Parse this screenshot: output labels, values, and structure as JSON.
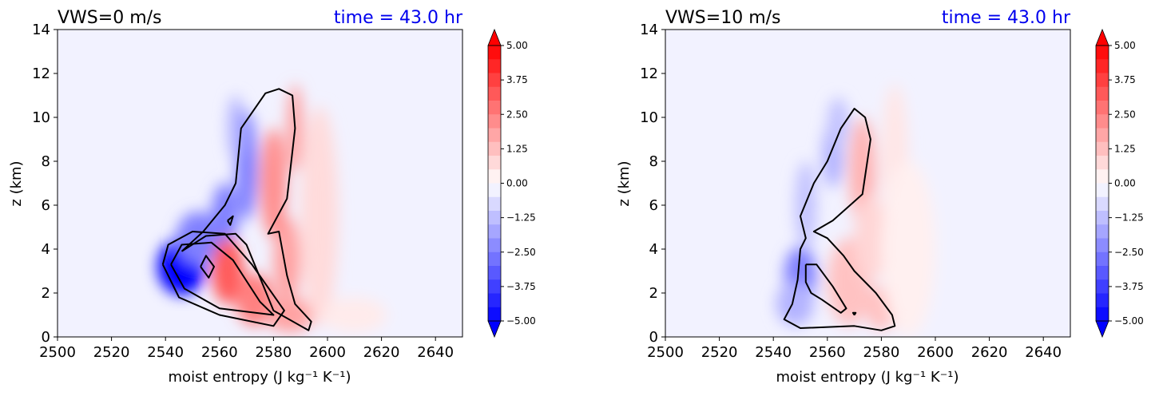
{
  "chart_data": [
    {
      "type": "contourf",
      "title": "VWS=0 m/s",
      "time_label": "time = 43.0 hr",
      "xlabel": "moist entropy (J kg⁻¹ K⁻¹)",
      "ylabel": "z (km)",
      "xlim": [
        2500,
        2650
      ],
      "ylim": [
        0,
        14
      ],
      "xticks": [
        "2500",
        "2520",
        "2540",
        "2560",
        "2580",
        "2600",
        "2620",
        "2640"
      ],
      "yticks": [
        "0",
        "2",
        "4",
        "6",
        "8",
        "10",
        "12",
        "14"
      ],
      "colorbar": {
        "min": -5.0,
        "max": 5.0,
        "extend": "both",
        "ticks": [
          "5.00",
          "3.75",
          "2.50",
          "1.25",
          "0.00",
          "−1.25",
          "−2.50",
          "−3.75",
          "−5.00"
        ]
      },
      "blobs": [
        {
          "x": 2546,
          "y": 3.2,
          "rx": 9,
          "ry": 1.3,
          "v": -5
        },
        {
          "x": 2545,
          "y": 3.3,
          "rx": 5,
          "ry": 0.8,
          "v": -5
        },
        {
          "x": 2552,
          "y": 4.5,
          "rx": 8,
          "ry": 1.2,
          "v": -2.5
        },
        {
          "x": 2562,
          "y": 5.5,
          "rx": 5,
          "ry": 1.5,
          "v": -2.5
        },
        {
          "x": 2570,
          "y": 7.8,
          "rx": 4,
          "ry": 2.5,
          "v": -2.5
        },
        {
          "x": 2566,
          "y": 9.5,
          "rx": 3,
          "ry": 1.5,
          "v": -1.5
        },
        {
          "x": 2563,
          "y": 3.0,
          "rx": 6,
          "ry": 1.5,
          "v": 3.2
        },
        {
          "x": 2573,
          "y": 1.7,
          "rx": 7,
          "ry": 1.2,
          "v": 2.5
        },
        {
          "x": 2586,
          "y": 1.0,
          "rx": 9,
          "ry": 0.8,
          "v": 1.8
        },
        {
          "x": 2585,
          "y": 3.5,
          "rx": 5,
          "ry": 2.0,
          "v": 1.8
        },
        {
          "x": 2580,
          "y": 7.0,
          "rx": 5,
          "ry": 2.5,
          "v": 2.2
        },
        {
          "x": 2588,
          "y": 9.5,
          "rx": 3,
          "ry": 2.0,
          "v": 1.8
        },
        {
          "x": 2597,
          "y": 5.5,
          "rx": 7,
          "ry": 5.0,
          "v": 0.7
        },
        {
          "x": 2610,
          "y": 1.0,
          "rx": 12,
          "ry": 0.8,
          "v": 0.4
        }
      ],
      "contours": [
        [
          [
            2539,
            3.3
          ],
          [
            2541,
            4.2
          ],
          [
            2550,
            4.8
          ],
          [
            2562,
            4.7
          ],
          [
            2572,
            3.3
          ],
          [
            2584,
            1.2
          ],
          [
            2580,
            0.5
          ],
          [
            2560,
            1.0
          ],
          [
            2545,
            1.8
          ],
          [
            2539,
            3.3
          ]
        ],
        [
          [
            2542,
            3.3
          ],
          [
            2546,
            4.2
          ],
          [
            2557,
            4.3
          ],
          [
            2565,
            3.5
          ],
          [
            2575,
            1.6
          ],
          [
            2580,
            1.0
          ],
          [
            2560,
            1.3
          ],
          [
            2547,
            2.2
          ],
          [
            2542,
            3.3
          ]
        ],
        [
          [
            2553,
            3.2
          ],
          [
            2555,
            3.7
          ],
          [
            2558,
            3.2
          ],
          [
            2556,
            2.7
          ],
          [
            2553,
            3.2
          ]
        ],
        [
          [
            2563,
            5.3
          ],
          [
            2565,
            5.5
          ],
          [
            2564,
            5.1
          ],
          [
            2563,
            5.3
          ]
        ],
        [
          [
            2546,
            3.9
          ],
          [
            2555,
            4.6
          ],
          [
            2566,
            4.7
          ],
          [
            2570,
            4.2
          ],
          [
            2580,
            1.2
          ],
          [
            2593,
            0.3
          ],
          [
            2594,
            0.7
          ],
          [
            2588,
            1.5
          ],
          [
            2585,
            2.8
          ],
          [
            2582,
            4.8
          ],
          [
            2578,
            4.7
          ],
          [
            2585,
            6.3
          ],
          [
            2588,
            9.5
          ],
          [
            2587,
            11.0
          ],
          [
            2582,
            11.3
          ],
          [
            2577,
            11.1
          ],
          [
            2568,
            9.5
          ],
          [
            2566,
            7.0
          ],
          [
            2562,
            6.0
          ],
          [
            2554,
            4.8
          ],
          [
            2546,
            3.9
          ]
        ]
      ]
    },
    {
      "type": "contourf",
      "title": "VWS=10 m/s",
      "time_label": "time = 43.0 hr",
      "xlabel": "moist entropy (J kg⁻¹ K⁻¹)",
      "ylabel": "z (km)",
      "xlim": [
        2500,
        2650
      ],
      "ylim": [
        0,
        14
      ],
      "xticks": [
        "2500",
        "2520",
        "2540",
        "2560",
        "2580",
        "2600",
        "2620",
        "2640"
      ],
      "yticks": [
        "0",
        "2",
        "4",
        "6",
        "8",
        "10",
        "12",
        "14"
      ],
      "colorbar": {
        "min": -5.0,
        "max": 5.0,
        "extend": "both",
        "ticks": [
          "5.00",
          "3.75",
          "2.50",
          "1.25",
          "0.00",
          "−1.25",
          "−2.50",
          "−3.75",
          "−5.00"
        ]
      },
      "blobs": [
        {
          "x": 2550,
          "y": 2.8,
          "rx": 6,
          "ry": 1.3,
          "v": -2.5
        },
        {
          "x": 2548,
          "y": 1.5,
          "rx": 7,
          "ry": 1.0,
          "v": -1.5
        },
        {
          "x": 2552,
          "y": 6.0,
          "rx": 4,
          "ry": 2.0,
          "v": -1.2
        },
        {
          "x": 2562,
          "y": 8.3,
          "rx": 4,
          "ry": 1.5,
          "v": -1.5
        },
        {
          "x": 2564,
          "y": 9.7,
          "rx": 4,
          "ry": 1.2,
          "v": -1.2
        },
        {
          "x": 2568,
          "y": 2.5,
          "rx": 8,
          "ry": 2.0,
          "v": 1.2
        },
        {
          "x": 2580,
          "y": 1.3,
          "rx": 6,
          "ry": 1.0,
          "v": 1.2
        },
        {
          "x": 2573,
          "y": 7.5,
          "rx": 5,
          "ry": 2.5,
          "v": 1.5
        },
        {
          "x": 2576,
          "y": 4.5,
          "rx": 6,
          "ry": 2.0,
          "v": 0.8
        },
        {
          "x": 2585,
          "y": 8.0,
          "rx": 5,
          "ry": 3.5,
          "v": 0.5
        },
        {
          "x": 2590,
          "y": 4.0,
          "rx": 10,
          "ry": 4.0,
          "v": 0.3
        }
      ],
      "contours": [
        [
          [
            2552,
            3.3
          ],
          [
            2556,
            3.3
          ],
          [
            2562,
            2.3
          ],
          [
            2567,
            1.3
          ],
          [
            2565,
            1.1
          ],
          [
            2558,
            1.7
          ],
          [
            2554,
            2.0
          ],
          [
            2552,
            2.5
          ],
          [
            2552,
            3.3
          ]
        ],
        [
          [
            2570,
            1.0
          ],
          [
            2570.5,
            1.1
          ],
          [
            2569.5,
            1.1
          ],
          [
            2570,
            1.0
          ]
        ],
        [
          [
            2549,
            2.6
          ],
          [
            2547,
            1.5
          ],
          [
            2544,
            0.8
          ],
          [
            2550,
            0.4
          ],
          [
            2570,
            0.5
          ],
          [
            2580,
            0.3
          ],
          [
            2585,
            0.5
          ],
          [
            2584,
            1.0
          ],
          [
            2578,
            2.0
          ],
          [
            2570,
            3.0
          ],
          [
            2566,
            3.7
          ],
          [
            2560,
            4.5
          ],
          [
            2555,
            4.8
          ],
          [
            2562,
            5.3
          ],
          [
            2573,
            6.5
          ],
          [
            2576,
            9.0
          ],
          [
            2574,
            10.0
          ],
          [
            2570,
            10.4
          ],
          [
            2565,
            9.5
          ],
          [
            2560,
            8.0
          ],
          [
            2555,
            7.0
          ],
          [
            2550,
            5.5
          ],
          [
            2552,
            4.5
          ],
          [
            2550,
            4.0
          ],
          [
            2549,
            2.6
          ]
        ]
      ]
    }
  ]
}
